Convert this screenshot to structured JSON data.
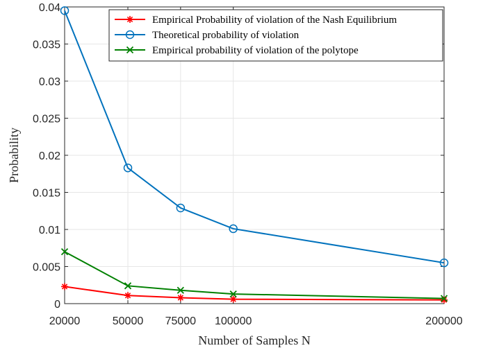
{
  "chart_data": {
    "type": "line",
    "title": "",
    "xlabel": "Number of Samples N",
    "ylabel": "Probability",
    "x": [
      20000,
      50000,
      75000,
      100000,
      200000
    ],
    "x_ticks": [
      20000,
      50000,
      75000,
      100000,
      200000
    ],
    "x_tick_labels": [
      "20000",
      "50000",
      "75000",
      "100000",
      "200000"
    ],
    "xlim": [
      20000,
      200000
    ],
    "ylim": [
      0,
      0.04
    ],
    "y_ticks": [
      0,
      0.005,
      0.01,
      0.015,
      0.02,
      0.025,
      0.03,
      0.035,
      0.04
    ],
    "y_tick_labels": [
      "0",
      "0.005",
      "0.01",
      "0.015",
      "0.02",
      "0.025",
      "0.03",
      "0.035",
      "0.04"
    ],
    "grid": true,
    "legend_position": "top-right",
    "series": [
      {
        "name": "Empirical Probability of violation of the Nash Equilibrium",
        "values": [
          0.0023,
          0.0011,
          0.0008,
          0.0006,
          0.0005
        ],
        "color": "#ff0000",
        "marker": "asterisk"
      },
      {
        "name": "Theoretical probability of violation",
        "values": [
          0.0395,
          0.0183,
          0.0129,
          0.0101,
          0.0055
        ],
        "color": "#0072bd",
        "marker": "circle"
      },
      {
        "name": "Empirical probability of violation of the polytope",
        "values": [
          0.007,
          0.0024,
          0.0018,
          0.0013,
          0.0007
        ],
        "color": "#008000",
        "marker": "x"
      }
    ]
  }
}
